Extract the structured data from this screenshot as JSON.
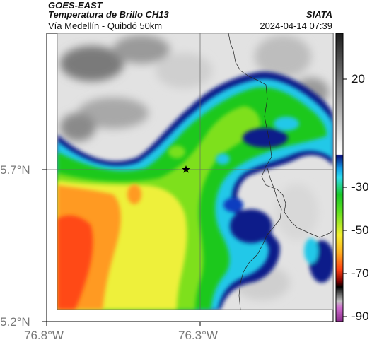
{
  "header": {
    "product": "GOES-EAST",
    "title": "Temperatura de Brillo CH13",
    "region": "Vía Medellín - Quibdó 50km",
    "organization": "SIATA",
    "datetime": "2024-04-14 07:39"
  },
  "axes": {
    "lat_ticks": [
      "5.7°N",
      "5.2°N"
    ],
    "lon_ticks": [
      "76.8°W",
      "76.3°W"
    ]
  },
  "colorbar": {
    "ticks": [
      "20",
      "-30",
      "-50",
      "-70",
      "-90"
    ],
    "colors": [
      "#2b2b2b",
      "#ffffff",
      "#a8a8a8",
      "#08137a",
      "#28d4ee",
      "#32d232",
      "#f5f030",
      "#ff3a10",
      "#000000",
      "#c060c0"
    ]
  },
  "map": {
    "marker": "star-marker",
    "crosshair": true
  }
}
